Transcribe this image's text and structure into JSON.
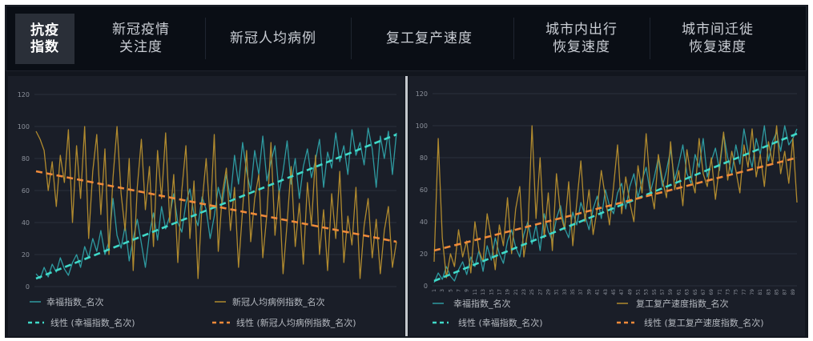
{
  "tabs": [
    {
      "lines": [
        "抗疫",
        "指数"
      ],
      "selected": true
    },
    {
      "lines": [
        "新冠疫情",
        "关注度"
      ],
      "selected": false
    },
    {
      "lines": [
        "新冠人均病例"
      ],
      "selected": false
    },
    {
      "lines": [
        "复工复产速度"
      ],
      "selected": false
    },
    {
      "lines": [
        "城市内出行",
        "恢复速度"
      ],
      "selected": false
    },
    {
      "lines": [
        "城市间迁徙",
        "恢复速度"
      ],
      "selected": false
    }
  ],
  "chart_data": [
    {
      "type": "line",
      "ylim": [
        0,
        120
      ],
      "yticks": [
        0,
        20,
        40,
        60,
        80,
        100,
        120
      ],
      "grid": true,
      "legend_position": "bottom",
      "series": [
        {
          "name": "幸福指数_名次",
          "color": "#2e9aa0",
          "values": [
            8,
            5,
            12,
            6,
            14,
            9,
            18,
            11,
            7,
            15,
            20,
            12,
            25,
            18,
            30,
            22,
            35,
            20,
            28,
            55,
            32,
            24,
            38,
            16,
            30,
            42,
            27,
            12,
            33,
            46,
            29,
            50,
            36,
            44,
            58,
            40,
            34,
            52,
            61,
            45,
            38,
            56,
            48,
            30,
            44,
            62,
            52,
            70,
            55,
            82,
            64,
            90,
            72,
            60,
            85,
            70,
            94,
            66,
            78,
            88,
            58,
            72,
            91,
            64,
            80,
            55,
            75,
            86,
            68,
            79,
            92,
            62,
            84,
            74,
            96,
            78,
            88,
            70,
            98,
            82,
            90,
            76,
            99,
            86,
            62,
            94,
            80,
            97,
            70,
            96
          ]
        },
        {
          "name": "新冠人均病例指数_名次",
          "color": "#b08a2e",
          "values": [
            97,
            92,
            85,
            60,
            78,
            50,
            82,
            65,
            98,
            40,
            88,
            55,
            100,
            30,
            72,
            95,
            45,
            86,
            20,
            68,
            100,
            58,
            35,
            80,
            10,
            62,
            92,
            48,
            75,
            25,
            85,
            55,
            96,
            40,
            70,
            15,
            60,
            88,
            30,
            66,
            5,
            52,
            80,
            42,
            95,
            22,
            58,
            74,
            35,
            62,
            12,
            48,
            85,
            28,
            55,
            70,
            18,
            45,
            90,
            32,
            60,
            8,
            40,
            75,
            25,
            52,
            14,
            65,
            38,
            82,
            20,
            48,
            10,
            58,
            30,
            72,
            15,
            44,
            26,
            62,
            5,
            38,
            55,
            18,
            42,
            8,
            35,
            50,
            12,
            28
          ]
        }
      ],
      "trendlines": [
        {
          "name": "线性 (幸福指数_名次)",
          "color": "#3fd9c8",
          "start": 5,
          "end": 95
        },
        {
          "name": "线性 (新冠人均病例指数_名次)",
          "color": "#ef8a3a",
          "start": 72,
          "end": 28
        }
      ]
    },
    {
      "type": "line",
      "ylim": [
        0,
        120
      ],
      "yticks": [
        0,
        20,
        40,
        60,
        80,
        100,
        120
      ],
      "grid": true,
      "legend_position": "bottom",
      "x": [
        1,
        2,
        3,
        4,
        5,
        6,
        7,
        8,
        9,
        10,
        11,
        12,
        13,
        14,
        15,
        16,
        17,
        18,
        19,
        20,
        21,
        22,
        23,
        24,
        25,
        26,
        27,
        28,
        29,
        30,
        31,
        32,
        33,
        34,
        35,
        36,
        37,
        38,
        39,
        40,
        41,
        42,
        43,
        44,
        45,
        46,
        47,
        48,
        49,
        50,
        51,
        52,
        53,
        54,
        55,
        56,
        57,
        58,
        59,
        60,
        61,
        62,
        63,
        64,
        65,
        66,
        67,
        68,
        69,
        70,
        71,
        72,
        73,
        74,
        75,
        76,
        77,
        78,
        79,
        80,
        81,
        82,
        83,
        84,
        85,
        86,
        87,
        88,
        89,
        90
      ],
      "xticks": [
        1,
        3,
        5,
        7,
        9,
        11,
        13,
        15,
        17,
        19,
        21,
        23,
        25,
        27,
        29,
        31,
        33,
        35,
        37,
        39,
        41,
        43,
        45,
        47,
        49,
        51,
        53,
        55,
        57,
        59,
        61,
        63,
        65,
        67,
        69,
        71,
        73,
        75,
        77,
        79,
        81,
        83,
        85,
        87,
        89
      ],
      "series": [
        {
          "name": "幸福指数_名次",
          "color": "#2e9aa0",
          "values": [
            2,
            8,
            4,
            12,
            6,
            3,
            10,
            15,
            7,
            18,
            12,
            22,
            9,
            25,
            16,
            30,
            20,
            14,
            28,
            35,
            24,
            18,
            32,
            40,
            26,
            38,
            22,
            45,
            34,
            28,
            42,
            50,
            36,
            30,
            46,
            38,
            52,
            44,
            35,
            48,
            56,
            42,
            60,
            50,
            45,
            58,
            64,
            48,
            62,
            70,
            55,
            66,
            74,
            58,
            68,
            80,
            62,
            72,
            85,
            66,
            76,
            88,
            70,
            64,
            82,
            74,
            92,
            68,
            78,
            86,
            72,
            95,
            80,
            70,
            88,
            76,
            98,
            84,
            74,
            92,
            82,
            100,
            78,
            90,
            96,
            84,
            100,
            88,
            92,
            98
          ]
        },
        {
          "name": "复工复产速度指数_名次",
          "color": "#b08a2e",
          "values": [
            15,
            92,
            30,
            5,
            20,
            12,
            35,
            18,
            28,
            8,
            40,
            22,
            15,
            45,
            30,
            10,
            38,
            25,
            55,
            20,
            48,
            62,
            18,
            35,
            100,
            42,
            80,
            30,
            58,
            22,
            70,
            45,
            35,
            65,
            25,
            52,
            78,
            40,
            60,
            32,
            48,
            72,
            55,
            38,
            62,
            88,
            45,
            68,
            52,
            40,
            75,
            58,
            95,
            62,
            48,
            82,
            66,
            55,
            90,
            60,
            72,
            50,
            85,
            68,
            58,
            92,
            70,
            62,
            80,
            54,
            75,
            96,
            66,
            84,
            72,
            58,
            88,
            74,
            98,
            68,
            82,
            62,
            90,
            76,
            100,
            70,
            84,
            64,
            92,
            52
          ]
        }
      ],
      "trendlines": [
        {
          "name": "线性 (幸福指数_名次)",
          "color": "#3fd9c8",
          "start": 3,
          "end": 95
        },
        {
          "name": "线性 (复工复产速度指数_名次)",
          "color": "#ef8a3a",
          "start": 22,
          "end": 80
        }
      ]
    }
  ]
}
